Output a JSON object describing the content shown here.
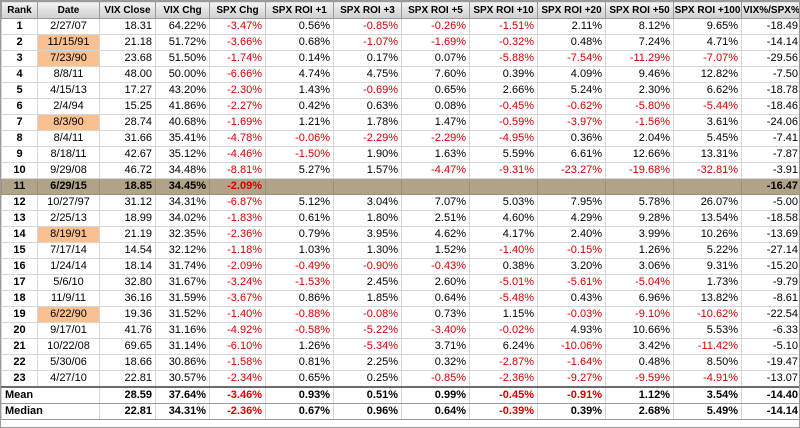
{
  "colors": {
    "negative_text": "#d40000",
    "date_highlight": "#fac090",
    "event_row_highlight": "#b0a388",
    "header_background": "#dedede",
    "grid_line": "#d6d6d6"
  },
  "chart_data": {
    "type": "table",
    "columns": [
      "Rank",
      "Date",
      "VIX Close",
      "VIX Chg",
      "SPX Chg",
      "SPX ROI +1",
      "SPX ROI +3",
      "SPX ROI +5",
      "SPX ROI +10",
      "SPX ROI +20",
      "SPX ROI +50",
      "SPX ROI +100",
      "VIX%/SPX%"
    ],
    "rows": [
      {
        "rank": "1",
        "date": "2/27/07",
        "date_highlight": false,
        "row_highlight": false,
        "values": [
          "18.31",
          "64.22%",
          "-3.47%",
          "0.56%",
          "-0.85%",
          "-0.26%",
          "-1.51%",
          "2.11%",
          "8.12%",
          "9.65%",
          "-18.49"
        ]
      },
      {
        "rank": "2",
        "date": "11/15/91",
        "date_highlight": true,
        "row_highlight": false,
        "values": [
          "21.18",
          "51.72%",
          "-3.66%",
          "0.68%",
          "-1.07%",
          "-1.69%",
          "-0.32%",
          "0.48%",
          "7.24%",
          "4.71%",
          "-14.14"
        ]
      },
      {
        "rank": "3",
        "date": "7/23/90",
        "date_highlight": true,
        "row_highlight": false,
        "values": [
          "23.68",
          "51.50%",
          "-1.74%",
          "0.14%",
          "0.17%",
          "0.07%",
          "-5.88%",
          "-7.54%",
          "-11.29%",
          "-7.07%",
          "-29.56"
        ]
      },
      {
        "rank": "4",
        "date": "8/8/11",
        "date_highlight": false,
        "row_highlight": false,
        "values": [
          "48.00",
          "50.00%",
          "-6.66%",
          "4.74%",
          "4.75%",
          "7.60%",
          "0.39%",
          "4.09%",
          "9.46%",
          "12.82%",
          "-7.50"
        ]
      },
      {
        "rank": "5",
        "date": "4/15/13",
        "date_highlight": false,
        "row_highlight": false,
        "values": [
          "17.27",
          "43.20%",
          "-2.30%",
          "1.43%",
          "-0.69%",
          "0.65%",
          "2.66%",
          "5.24%",
          "2.30%",
          "6.62%",
          "-18.78"
        ]
      },
      {
        "rank": "6",
        "date": "2/4/94",
        "date_highlight": false,
        "row_highlight": false,
        "values": [
          "15.25",
          "41.86%",
          "-2.27%",
          "0.42%",
          "0.63%",
          "0.08%",
          "-0.45%",
          "-0.62%",
          "-5.80%",
          "-5.44%",
          "-18.46"
        ]
      },
      {
        "rank": "7",
        "date": "8/3/90",
        "date_highlight": true,
        "row_highlight": false,
        "values": [
          "28.74",
          "40.68%",
          "-1.69%",
          "1.21%",
          "1.78%",
          "1.47%",
          "-0.59%",
          "-3.97%",
          "-1.56%",
          "3.61%",
          "-24.06"
        ]
      },
      {
        "rank": "8",
        "date": "8/4/11",
        "date_highlight": false,
        "row_highlight": false,
        "values": [
          "31.66",
          "35.41%",
          "-4.78%",
          "-0.06%",
          "-2.29%",
          "-2.29%",
          "-4.95%",
          "0.36%",
          "2.04%",
          "5.45%",
          "-7.41"
        ]
      },
      {
        "rank": "9",
        "date": "8/18/11",
        "date_highlight": false,
        "row_highlight": false,
        "values": [
          "42.67",
          "35.12%",
          "-4.46%",
          "-1.50%",
          "1.90%",
          "1.63%",
          "5.59%",
          "6.61%",
          "12.66%",
          "13.31%",
          "-7.87"
        ]
      },
      {
        "rank": "10",
        "date": "9/29/08",
        "date_highlight": false,
        "row_highlight": false,
        "values": [
          "46.72",
          "34.48%",
          "-8.81%",
          "5.27%",
          "1.57%",
          "-4.47%",
          "-9.31%",
          "-23.27%",
          "-19.68%",
          "-32.81%",
          "-3.91"
        ]
      },
      {
        "rank": "11",
        "date": "6/29/15",
        "date_highlight": false,
        "row_highlight": true,
        "values": [
          "18.85",
          "34.45%",
          "-2.09%",
          "",
          "",
          "",
          "",
          "",
          "",
          "",
          "-16.47"
        ]
      },
      {
        "rank": "12",
        "date": "10/27/97",
        "date_highlight": false,
        "row_highlight": false,
        "values": [
          "31.12",
          "34.31%",
          "-6.87%",
          "5.12%",
          "3.04%",
          "7.07%",
          "5.03%",
          "7.95%",
          "5.78%",
          "26.07%",
          "-5.00"
        ]
      },
      {
        "rank": "13",
        "date": "2/25/13",
        "date_highlight": false,
        "row_highlight": false,
        "values": [
          "18.99",
          "34.02%",
          "-1.83%",
          "0.61%",
          "1.80%",
          "2.51%",
          "4.60%",
          "4.29%",
          "9.28%",
          "13.54%",
          "-18.58"
        ]
      },
      {
        "rank": "14",
        "date": "8/19/91",
        "date_highlight": true,
        "row_highlight": false,
        "values": [
          "21.19",
          "32.35%",
          "-2.36%",
          "0.79%",
          "3.95%",
          "4.62%",
          "4.17%",
          "2.40%",
          "3.99%",
          "10.26%",
          "-13.69"
        ]
      },
      {
        "rank": "15",
        "date": "7/17/14",
        "date_highlight": false,
        "row_highlight": false,
        "values": [
          "14.54",
          "32.12%",
          "-1.18%",
          "1.03%",
          "1.30%",
          "1.52%",
          "-1.40%",
          "-0.15%",
          "1.26%",
          "5.22%",
          "-27.14"
        ]
      },
      {
        "rank": "16",
        "date": "1/24/14",
        "date_highlight": false,
        "row_highlight": false,
        "values": [
          "18.14",
          "31.74%",
          "-2.09%",
          "-0.49%",
          "-0.90%",
          "-0.43%",
          "0.38%",
          "3.20%",
          "3.06%",
          "9.31%",
          "-15.20"
        ]
      },
      {
        "rank": "17",
        "date": "5/6/10",
        "date_highlight": false,
        "row_highlight": false,
        "values": [
          "32.80",
          "31.67%",
          "-3.24%",
          "-1.53%",
          "2.45%",
          "2.60%",
          "-5.01%",
          "-5.61%",
          "-5.04%",
          "1.73%",
          "-9.79"
        ]
      },
      {
        "rank": "18",
        "date": "11/9/11",
        "date_highlight": false,
        "row_highlight": false,
        "values": [
          "36.16",
          "31.59%",
          "-3.67%",
          "0.86%",
          "1.85%",
          "0.64%",
          "-5.48%",
          "0.43%",
          "6.96%",
          "13.82%",
          "-8.61"
        ]
      },
      {
        "rank": "19",
        "date": "6/22/90",
        "date_highlight": true,
        "row_highlight": false,
        "values": [
          "19.36",
          "31.52%",
          "-1.40%",
          "-0.88%",
          "-0.08%",
          "0.73%",
          "1.15%",
          "-0.03%",
          "-9.10%",
          "-10.62%",
          "-22.54"
        ]
      },
      {
        "rank": "20",
        "date": "9/17/01",
        "date_highlight": false,
        "row_highlight": false,
        "values": [
          "41.76",
          "31.16%",
          "-4.92%",
          "-0.58%",
          "-5.22%",
          "-3.40%",
          "-0.02%",
          "4.93%",
          "10.66%",
          "5.53%",
          "-6.33"
        ]
      },
      {
        "rank": "21",
        "date": "10/22/08",
        "date_highlight": false,
        "row_highlight": false,
        "values": [
          "69.65",
          "31.14%",
          "-6.10%",
          "1.26%",
          "-5.34%",
          "3.71%",
          "6.24%",
          "-10.06%",
          "3.42%",
          "-11.42%",
          "-5.10"
        ]
      },
      {
        "rank": "22",
        "date": "5/30/06",
        "date_highlight": false,
        "row_highlight": false,
        "values": [
          "18.66",
          "30.86%",
          "-1.58%",
          "0.81%",
          "2.25%",
          "0.32%",
          "-2.87%",
          "-1.64%",
          "0.48%",
          "8.50%",
          "-19.47"
        ]
      },
      {
        "rank": "23",
        "date": "4/27/10",
        "date_highlight": false,
        "row_highlight": false,
        "values": [
          "22.81",
          "30.57%",
          "-2.34%",
          "0.65%",
          "0.25%",
          "-0.85%",
          "-2.36%",
          "-9.27%",
          "-9.59%",
          "-4.91%",
          "-13.07"
        ]
      }
    ],
    "summary_rows": [
      {
        "label": "Mean",
        "values": [
          "28.59",
          "37.64%",
          "-3.46%",
          "0.93%",
          "0.51%",
          "0.99%",
          "-0.45%",
          "-0.91%",
          "1.12%",
          "3.54%",
          "-14.40"
        ]
      },
      {
        "label": "Median",
        "values": [
          "22.81",
          "34.31%",
          "-2.36%",
          "0.67%",
          "0.96%",
          "0.64%",
          "-0.39%",
          "0.39%",
          "2.68%",
          "5.49%",
          "-14.14"
        ]
      }
    ]
  }
}
